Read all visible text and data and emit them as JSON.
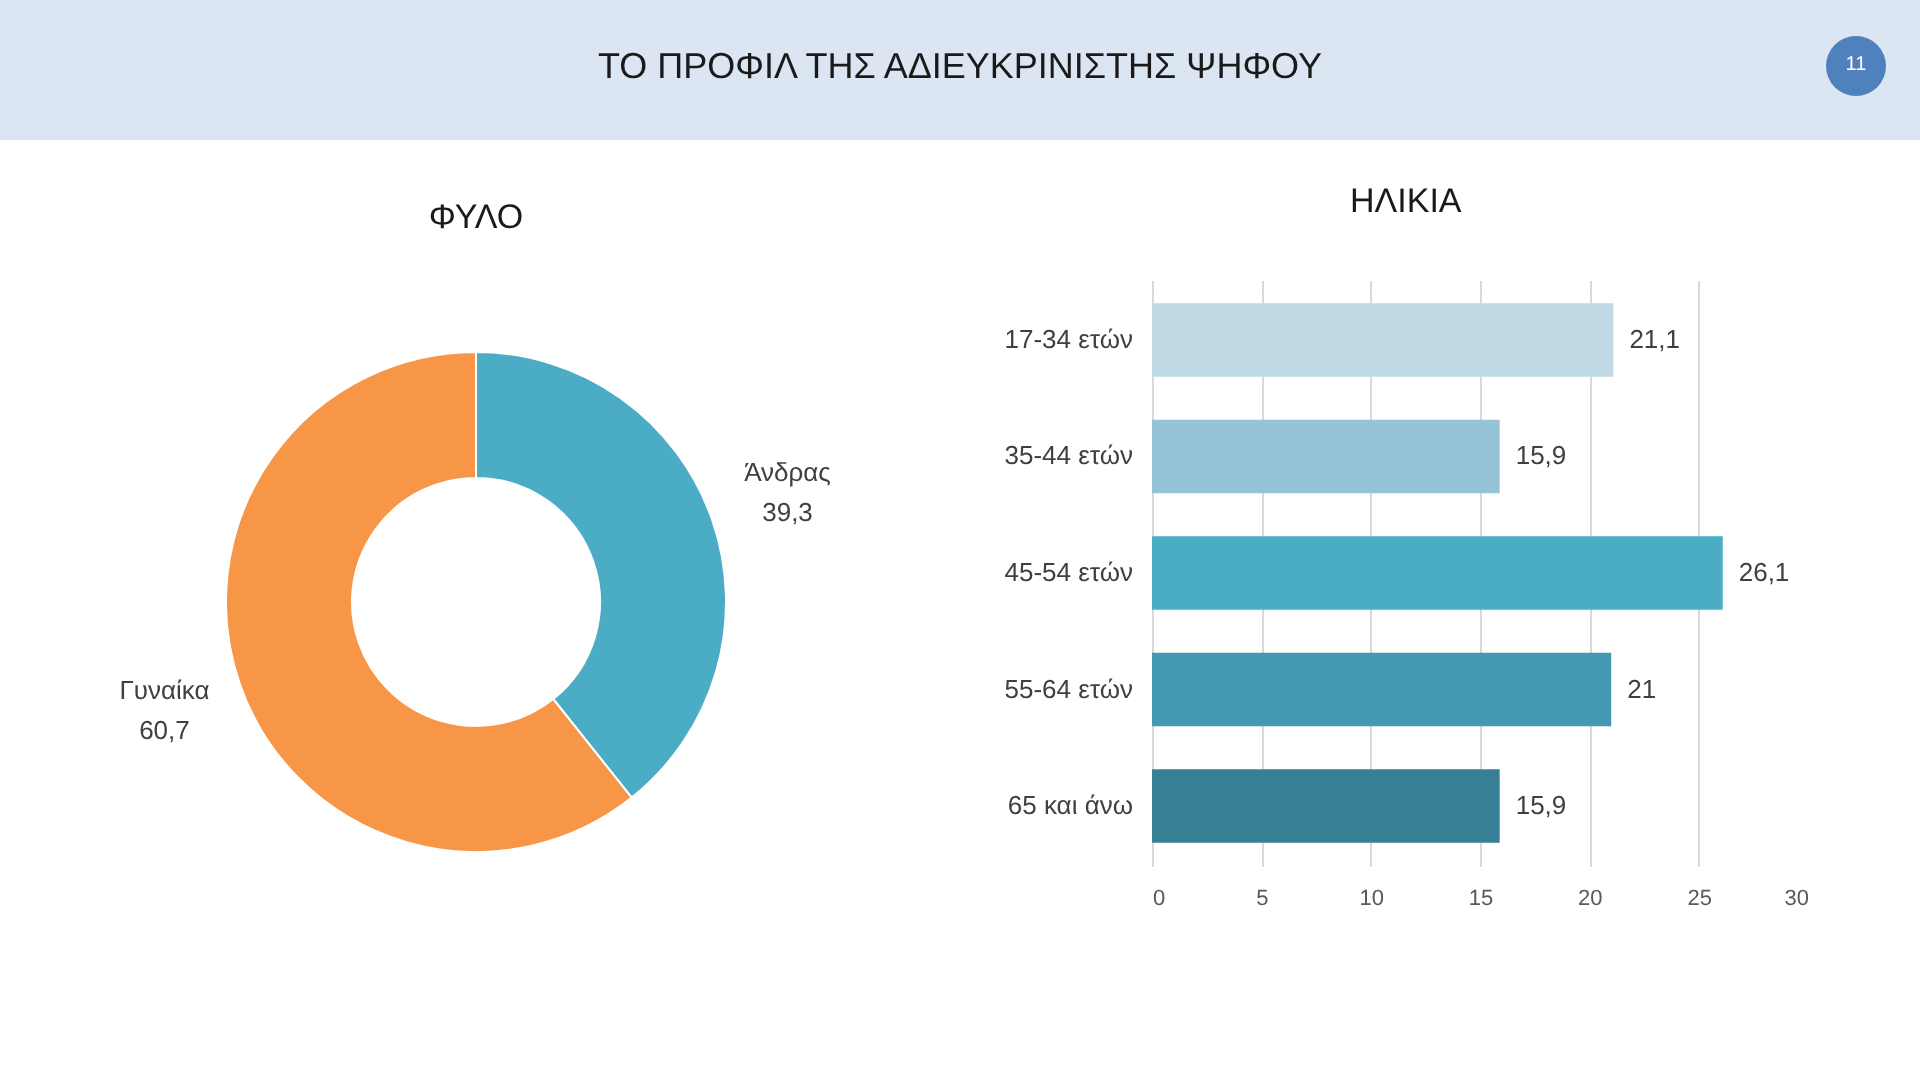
{
  "chart_data": [
    {
      "type": "other",
      "title": "ΤΟ ΠΡΟΦΙΛ ΤΗΣ ΑΔΙΕΥΚΡΙΝΙΣΤΗΣ ΨΗΦΟΥ",
      "annotations": [
        "11"
      ]
    },
    {
      "type": "donut",
      "title": "ΦΥΛΟ",
      "categories": [
        "Άνδρας",
        "Γυναίκα"
      ],
      "values": [
        39.3,
        60.7
      ],
      "colors": [
        "#4bacc6",
        "#f79646"
      ],
      "value_labels": [
        "39,3",
        "60,7"
      ]
    },
    {
      "type": "bar",
      "orientation": "horizontal",
      "title": "ΗΛΙΚΙΑ",
      "categories": [
        "17-34 ετών",
        "35-44 ετών",
        "45-54 ετών",
        "55-64 ετών",
        "65 και άνω"
      ],
      "values": [
        21.1,
        15.9,
        26.1,
        21,
        15.9
      ],
      "colors": [
        "#bed8e4",
        "#94c4d6",
        "#4bacc6",
        "#4299b1",
        "#367f94"
      ],
      "value_labels": [
        "21,1",
        "15,9",
        "26,1",
        "21",
        "15,9"
      ],
      "xlim": [
        0,
        30
      ],
      "xticks": [
        0,
        5,
        10,
        15,
        20,
        25,
        30
      ],
      "grid": "x"
    }
  ]
}
